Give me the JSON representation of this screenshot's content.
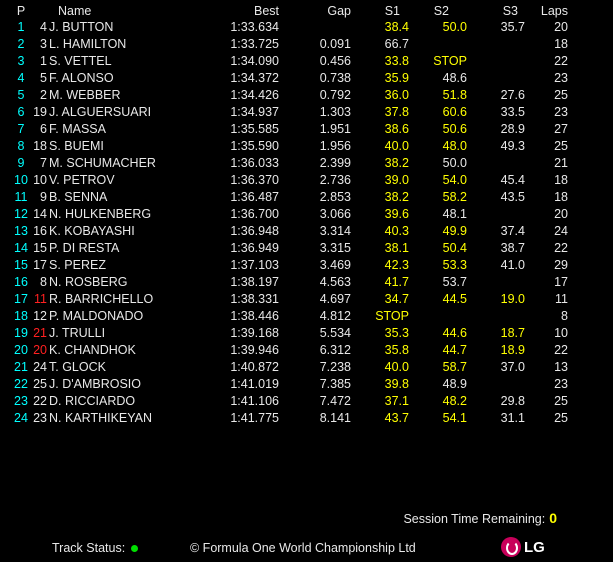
{
  "colors": {
    "position": "#00ffff",
    "fastest": "#ffff00",
    "normal": "#e8e8e8",
    "penalty": "#ff2020",
    "track_status": "#00e000"
  },
  "headers": {
    "p": "P",
    "name": "Name",
    "best": "Best",
    "gap": "Gap",
    "s1": "S1",
    "s2": "S2",
    "s3": "S3",
    "laps": "Laps"
  },
  "rows": [
    {
      "p": "1",
      "num": "4",
      "name": "J. BUTTON",
      "best": "1:33.634",
      "gap": "",
      "s1": "38.4",
      "s2": "50.0",
      "s3": "35.7",
      "laps": "20",
      "c": "wyyw"
    },
    {
      "p": "2",
      "num": "3",
      "name": "L. HAMILTON",
      "best": "1:33.725",
      "gap": "0.091",
      "s1": "66.7",
      "s2": "",
      "s3": "",
      "laps": "18",
      "c": "wwww"
    },
    {
      "p": "3",
      "num": "1",
      "name": "S. VETTEL",
      "best": "1:34.090",
      "gap": "0.456",
      "s1": "33.8",
      "s2": "STOP",
      "s3": "",
      "laps": "22",
      "c": "wyyw"
    },
    {
      "p": "4",
      "num": "5",
      "name": "F. ALONSO",
      "best": "1:34.372",
      "gap": "0.738",
      "s1": "35.9",
      "s2": "48.6",
      "s3": "",
      "laps": "23",
      "c": "wyww"
    },
    {
      "p": "5",
      "num": "2",
      "name": "M. WEBBER",
      "best": "1:34.426",
      "gap": "0.792",
      "s1": "36.0",
      "s2": "51.8",
      "s3": "27.6",
      "laps": "25",
      "c": "wyyw"
    },
    {
      "p": "6",
      "num": "19",
      "name": "J. ALGUERSUARI",
      "best": "1:34.937",
      "gap": "1.303",
      "s1": "37.8",
      "s2": "60.6",
      "s3": "33.5",
      "laps": "23",
      "c": "wyyw"
    },
    {
      "p": "7",
      "num": "6",
      "name": "F. MASSA",
      "best": "1:35.585",
      "gap": "1.951",
      "s1": "38.6",
      "s2": "50.6",
      "s3": "28.9",
      "laps": "27",
      "c": "wyyw"
    },
    {
      "p": "8",
      "num": "18",
      "name": "S. BUEMI",
      "best": "1:35.590",
      "gap": "1.956",
      "s1": "40.0",
      "s2": "48.0",
      "s3": "49.3",
      "laps": "25",
      "c": "wyyw"
    },
    {
      "p": "9",
      "num": "7",
      "name": "M. SCHUMACHER",
      "best": "1:36.033",
      "gap": "2.399",
      "s1": "38.2",
      "s2": "50.0",
      "s3": "",
      "laps": "21",
      "c": "wyww"
    },
    {
      "p": "10",
      "num": "10",
      "name": "V. PETROV",
      "best": "1:36.370",
      "gap": "2.736",
      "s1": "39.0",
      "s2": "54.0",
      "s3": "45.4",
      "laps": "18",
      "c": "wyyw"
    },
    {
      "p": "11",
      "num": "9",
      "name": "B. SENNA",
      "best": "1:36.487",
      "gap": "2.853",
      "s1": "38.2",
      "s2": "58.2",
      "s3": "43.5",
      "laps": "18",
      "c": "wyyw"
    },
    {
      "p": "12",
      "num": "14",
      "name": "N. HULKENBERG",
      "best": "1:36.700",
      "gap": "3.066",
      "s1": "39.6",
      "s2": "48.1",
      "s3": "",
      "laps": "20",
      "c": "wyww"
    },
    {
      "p": "13",
      "num": "16",
      "name": "K. KOBAYASHI",
      "best": "1:36.948",
      "gap": "3.314",
      "s1": "40.3",
      "s2": "49.9",
      "s3": "37.4",
      "laps": "24",
      "c": "wyyw"
    },
    {
      "p": "14",
      "num": "15",
      "name": "P. DI RESTA",
      "best": "1:36.949",
      "gap": "3.315",
      "s1": "38.1",
      "s2": "50.4",
      "s3": "38.7",
      "laps": "22",
      "c": "wyyw"
    },
    {
      "p": "15",
      "num": "17",
      "name": "S. PEREZ",
      "best": "1:37.103",
      "gap": "3.469",
      "s1": "42.3",
      "s2": "53.3",
      "s3": "41.0",
      "laps": "29",
      "c": "wyyw"
    },
    {
      "p": "16",
      "num": "8",
      "name": "N. ROSBERG",
      "best": "1:38.197",
      "gap": "4.563",
      "s1": "41.7",
      "s2": "53.7",
      "s3": "",
      "laps": "17",
      "c": "wyww"
    },
    {
      "p": "17",
      "num": "11",
      "name": "R. BARRICHELLO",
      "best": "1:38.331",
      "gap": "4.697",
      "s1": "34.7",
      "s2": "44.5",
      "s3": "19.0",
      "laps": "11",
      "c": "ryyy"
    },
    {
      "p": "18",
      "num": "12",
      "name": "P. MALDONADO",
      "best": "1:38.446",
      "gap": "4.812",
      "s1": "STOP",
      "s2": "",
      "s3": "",
      "laps": "8",
      "c": "wyww"
    },
    {
      "p": "19",
      "num": "21",
      "name": "J. TRULLI",
      "best": "1:39.168",
      "gap": "5.534",
      "s1": "35.3",
      "s2": "44.6",
      "s3": "18.7",
      "laps": "10",
      "c": "ryyy"
    },
    {
      "p": "20",
      "num": "20",
      "name": "K. CHANDHOK",
      "best": "1:39.946",
      "gap": "6.312",
      "s1": "35.8",
      "s2": "44.7",
      "s3": "18.9",
      "laps": "22",
      "c": "ryyy"
    },
    {
      "p": "21",
      "num": "24",
      "name": "T. GLOCK",
      "best": "1:40.872",
      "gap": "7.238",
      "s1": "40.0",
      "s2": "58.7",
      "s3": "37.0",
      "laps": "13",
      "c": "wyyw"
    },
    {
      "p": "22",
      "num": "25",
      "name": "J. D'AMBROSIO",
      "best": "1:41.019",
      "gap": "7.385",
      "s1": "39.8",
      "s2": "48.9",
      "s3": "",
      "laps": "23",
      "c": "wyww"
    },
    {
      "p": "23",
      "num": "22",
      "name": "D. RICCIARDO",
      "best": "1:41.106",
      "gap": "7.472",
      "s1": "37.1",
      "s2": "48.2",
      "s3": "29.8",
      "laps": "25",
      "c": "wyyw"
    },
    {
      "p": "24",
      "num": "23",
      "name": "N. KARTHIKEYAN",
      "best": "1:41.775",
      "gap": "8.141",
      "s1": "43.7",
      "s2": "54.1",
      "s3": "31.1",
      "laps": "25",
      "c": "wyyw"
    }
  ],
  "footer": {
    "session_label": "Session Time Remaining:",
    "session_value": "0",
    "track_label": "Track Status:",
    "track_icon": "green-dot",
    "copyright": "© Formula One World Championship Ltd",
    "sponsor": "LG"
  }
}
